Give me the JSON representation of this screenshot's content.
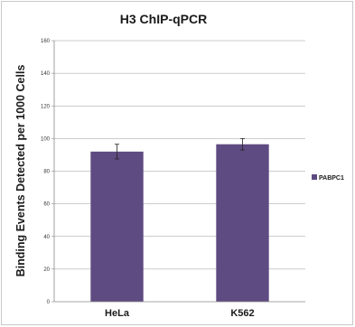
{
  "chart_data": {
    "type": "bar",
    "title": "H3 ChIP-qPCR",
    "xlabel": "",
    "ylabel": "Binding Events Detected per 1000 Cells",
    "categories": [
      "HeLa",
      "K562"
    ],
    "series": [
      {
        "name": "PABPC1",
        "values": [
          92,
          96.5
        ],
        "errors": [
          4.5,
          3.5
        ],
        "color": "#5e4b82"
      }
    ],
    "ylim": [
      0,
      160
    ],
    "yticks": [
      0,
      20,
      40,
      60,
      80,
      100,
      120,
      140,
      160
    ],
    "grid": true,
    "legend_position": "right"
  }
}
